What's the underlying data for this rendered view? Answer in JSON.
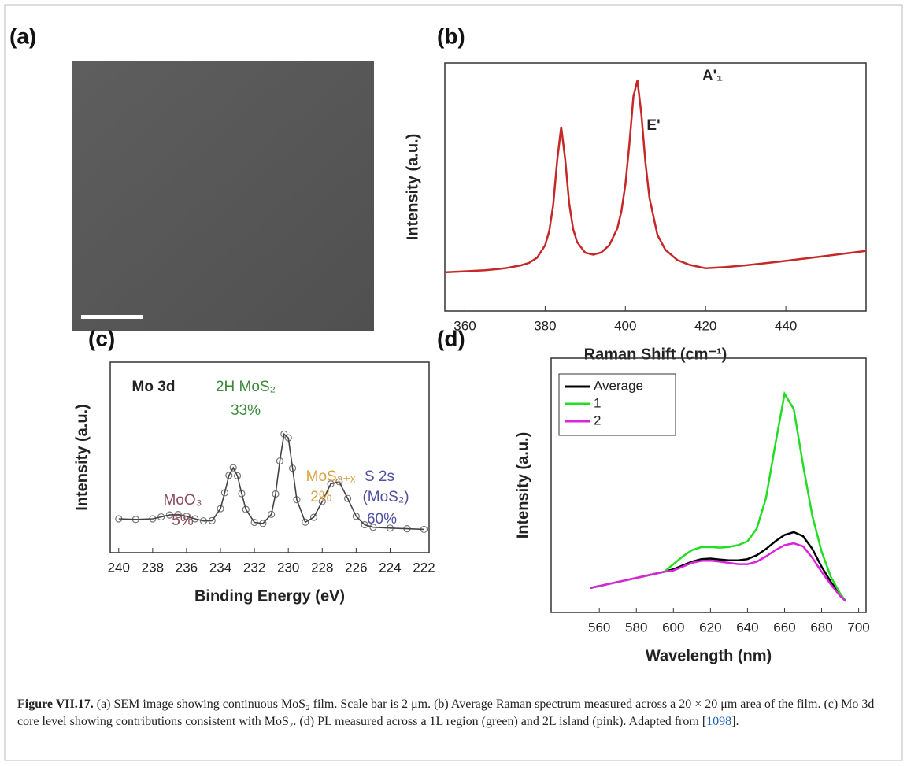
{
  "panel_labels": [
    "(a)",
    "(b)",
    "(c)",
    "(d)"
  ],
  "chart_data": [
    {
      "type": "line",
      "x_label": "Raman Shift (cm⁻¹)",
      "y_label": "Intensity (a.u.)",
      "x": [
        355,
        360,
        365,
        370,
        374,
        376,
        378,
        380,
        381,
        382,
        383,
        384,
        385,
        386,
        387,
        388,
        390,
        392,
        394,
        396,
        398,
        399,
        400,
        401,
        402,
        403,
        404,
        405,
        406,
        408,
        410,
        413,
        416,
        420,
        425,
        430,
        435,
        440,
        445,
        450,
        455,
        460
      ],
      "series": [
        {
          "color": "#c62828",
          "values": [
            0.156,
            0.16,
            0.164,
            0.172,
            0.184,
            0.194,
            0.215,
            0.265,
            0.321,
            0.426,
            0.607,
            0.743,
            0.61,
            0.432,
            0.33,
            0.277,
            0.235,
            0.227,
            0.236,
            0.265,
            0.333,
            0.401,
            0.509,
            0.673,
            0.865,
            0.93,
            0.791,
            0.598,
            0.456,
            0.307,
            0.246,
            0.205,
            0.186,
            0.172,
            0.177,
            0.184,
            0.193,
            0.202,
            0.212,
            0.222,
            0.232,
            0.242
          ]
        }
      ],
      "xlim": [
        355,
        460
      ],
      "ylim": [
        0,
        1
      ],
      "xticks": [
        360,
        380,
        400,
        420,
        440
      ],
      "annotations": [
        "E'",
        "A'₁"
      ]
    },
    {
      "type": "line",
      "markers": true,
      "x_label": "Binding Energy (eV)",
      "y_label": "Intensity (a.u.)",
      "x": [
        240,
        239,
        238,
        237.5,
        237,
        236.5,
        236,
        235.5,
        235,
        234.5,
        234,
        233.75,
        233.5,
        233.25,
        233,
        232.75,
        232.5,
        232,
        231.5,
        231,
        230.75,
        230.5,
        230.25,
        230,
        229.75,
        229.5,
        229,
        228.5,
        228,
        227.5,
        227,
        226.5,
        226,
        225.5,
        225,
        224,
        223,
        222
      ],
      "series": [
        {
          "color": "#444444",
          "values": [
            0.16,
            0.157,
            0.16,
            0.169,
            0.178,
            0.18,
            0.172,
            0.16,
            0.15,
            0.151,
            0.208,
            0.283,
            0.365,
            0.401,
            0.363,
            0.279,
            0.204,
            0.143,
            0.138,
            0.181,
            0.277,
            0.433,
            0.56,
            0.542,
            0.399,
            0.25,
            0.144,
            0.167,
            0.242,
            0.325,
            0.335,
            0.256,
            0.172,
            0.132,
            0.12,
            0.116,
            0.113,
            0.11
          ]
        }
      ],
      "xlim": [
        240.5,
        221.7
      ],
      "ylim": [
        0,
        0.9
      ],
      "xticks": [
        240,
        238,
        236,
        234,
        232,
        230,
        228,
        226,
        224,
        222
      ],
      "annotations": [
        {
          "text": "Mo 3d",
          "color": "#222222"
        },
        {
          "text": "2H MoS₂",
          "color": "#3a8a3a"
        },
        {
          "text": "33%",
          "color": "#3a8a3a"
        },
        {
          "text": "MoO₃",
          "color": "#8a4a5a"
        },
        {
          "text": "5%",
          "color": "#8a4a5a"
        },
        {
          "text": "MoS₂₊ₓ",
          "color": "#d9a040"
        },
        {
          "text": "2%",
          "color": "#d9a040"
        },
        {
          "text": "S 2s",
          "color": "#5050a0"
        },
        {
          "text": "(MoS₂)",
          "color": "#5050a0"
        },
        {
          "text": "60%",
          "color": "#5050a0"
        }
      ]
    },
    {
      "type": "line",
      "x_label": "Wavelength (nm)",
      "y_label": "Intensity (a.u.)",
      "legend": "upper left",
      "x": [
        555,
        560,
        565,
        570,
        575,
        580,
        585,
        590,
        595,
        600,
        605,
        610,
        615,
        620,
        625,
        630,
        635,
        640,
        645,
        650,
        655,
        660,
        665,
        670,
        675,
        680,
        685,
        690,
        693
      ],
      "series": [
        {
          "name": "Average",
          "color": "#000000",
          "values": [
            0.096,
            0.104,
            0.112,
            0.12,
            0.128,
            0.136,
            0.144,
            0.152,
            0.16,
            0.17,
            0.185,
            0.2,
            0.21,
            0.212,
            0.208,
            0.205,
            0.205,
            0.21,
            0.225,
            0.25,
            0.28,
            0.305,
            0.316,
            0.3,
            0.25,
            0.18,
            0.12,
            0.07,
            0.045
          ]
        },
        {
          "name": "1",
          "color": "#22dd22",
          "values": [
            0.096,
            0.104,
            0.112,
            0.12,
            0.128,
            0.136,
            0.144,
            0.152,
            0.16,
            0.19,
            0.22,
            0.245,
            0.257,
            0.258,
            0.255,
            0.258,
            0.265,
            0.28,
            0.33,
            0.45,
            0.66,
            0.86,
            0.8,
            0.58,
            0.38,
            0.24,
            0.14,
            0.075,
            0.045
          ]
        },
        {
          "name": "2",
          "color": "#dd22dd",
          "values": [
            0.096,
            0.104,
            0.112,
            0.12,
            0.128,
            0.136,
            0.144,
            0.152,
            0.16,
            0.165,
            0.18,
            0.195,
            0.203,
            0.204,
            0.2,
            0.195,
            0.19,
            0.19,
            0.2,
            0.22,
            0.245,
            0.265,
            0.272,
            0.26,
            0.215,
            0.16,
            0.11,
            0.065,
            0.045
          ]
        }
      ],
      "xlim": [
        534,
        704
      ],
      "ylim": [
        0,
        1
      ],
      "xticks": [
        560,
        580,
        600,
        620,
        640,
        660,
        680,
        700
      ]
    }
  ],
  "caption": {
    "label": "Figure VII.17.",
    "text": "(a) SEM image showing continuous MoS₂ film. Scale bar is 2 μm. (b) Average Raman spectrum measured across a 20 × 20 μm area of the film. (c) Mo 3d core level showing contributions consistent with MoS₂. (d) PL measured across a 1L region (green) and 2L island (pink). Adapted from [",
    "reference": "1098",
    "text_end": "]."
  }
}
